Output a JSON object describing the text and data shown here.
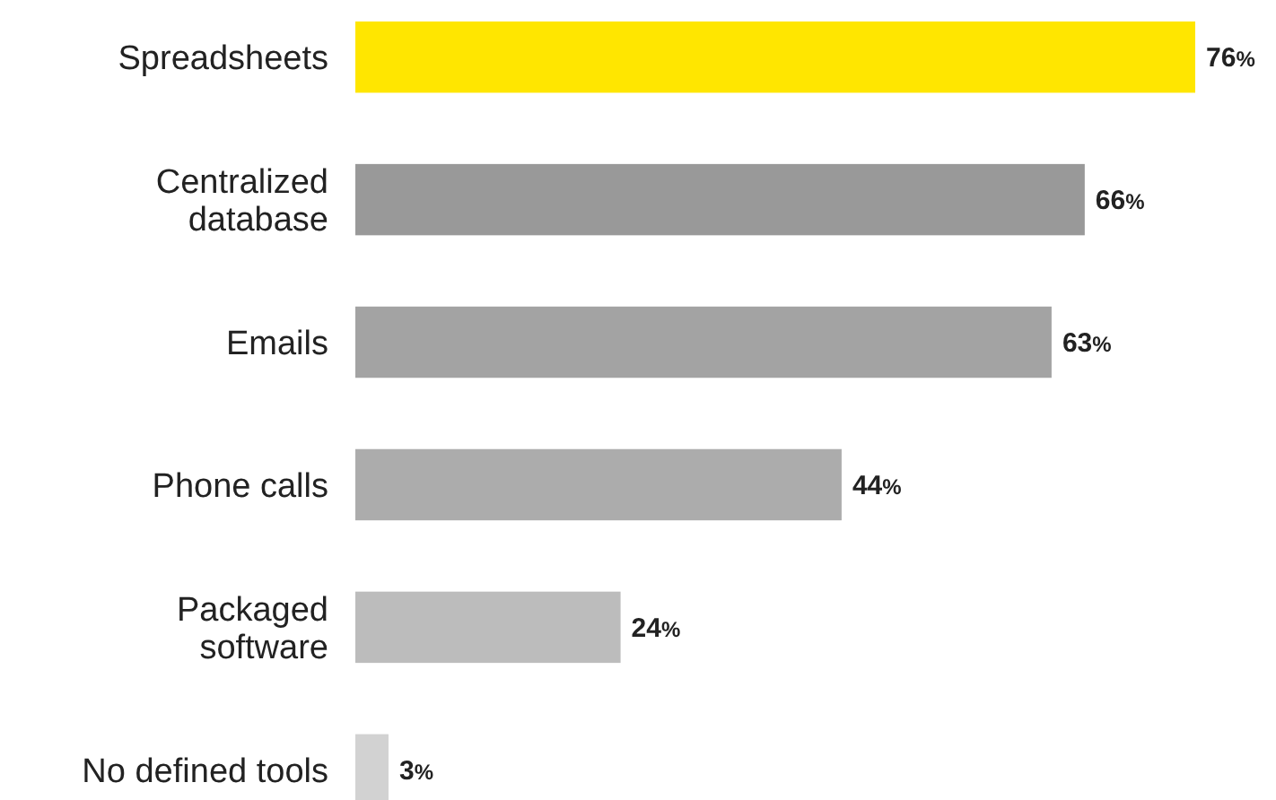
{
  "chart_data": {
    "type": "bar",
    "orientation": "horizontal",
    "categories": [
      "Spreadsheets",
      "Centralized\ndatabase",
      "Emails",
      "Phone calls",
      "Packaged\nsoftware",
      "No defined tools"
    ],
    "values": [
      76,
      66,
      63,
      44,
      24,
      3
    ],
    "colors": [
      "#ffe600",
      "#999999",
      "#a3a3a3",
      "#acacac",
      "#bcbcbc",
      "#d2d2d2"
    ],
    "value_labels": [
      "76%",
      "66%",
      "63%",
      "44%",
      "24%",
      "3%"
    ]
  }
}
